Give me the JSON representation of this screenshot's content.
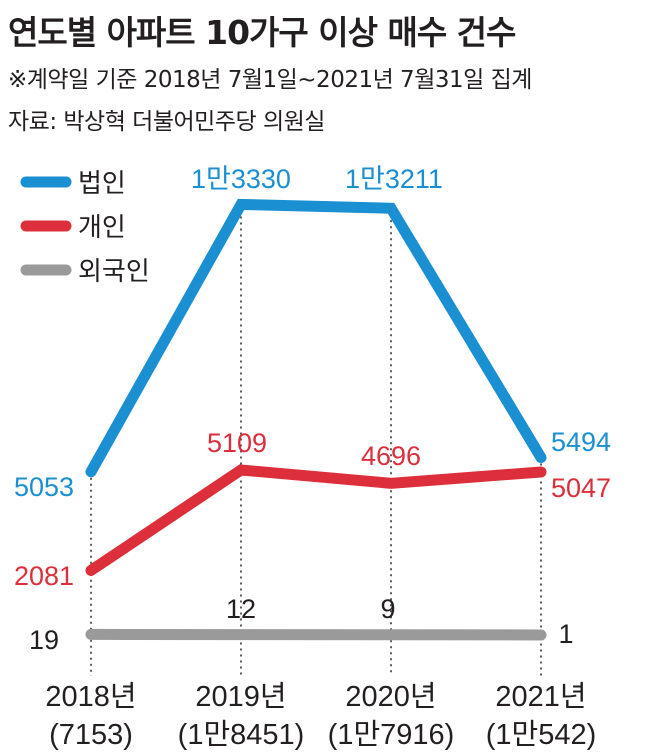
{
  "title": "연도별 아파트 10가구 이상 매수 건수",
  "period_note": "※계약일 기준 2018년 7월1일~2021년 7월31일 집계",
  "source_note": "자료: 박상혁 더불어민주당 의원실",
  "chart_data": {
    "type": "line",
    "categories": [
      "2018년",
      "2019년",
      "2020년",
      "2021년"
    ],
    "category_totals": [
      "(7153)",
      "(1만8451)",
      "(1만7916)",
      "(1만542)"
    ],
    "legend_position": "top-left",
    "grid": false,
    "series": [
      {
        "name": "법인",
        "color": "#1a8fd1",
        "values": [
          5053,
          13330,
          13211,
          5494
        ],
        "labels": [
          "5053",
          "1만3330",
          "1만3211",
          "5494"
        ]
      },
      {
        "name": "개인",
        "color": "#dd2f3b",
        "values": [
          2081,
          5109,
          4696,
          5047
        ],
        "labels": [
          "2081",
          "5109",
          "4696",
          "5047"
        ]
      },
      {
        "name": "외국인",
        "color": "#9a9a9a",
        "values": [
          19,
          12,
          9,
          1
        ],
        "labels": [
          "19",
          "12",
          "9",
          "1"
        ]
      }
    ]
  }
}
